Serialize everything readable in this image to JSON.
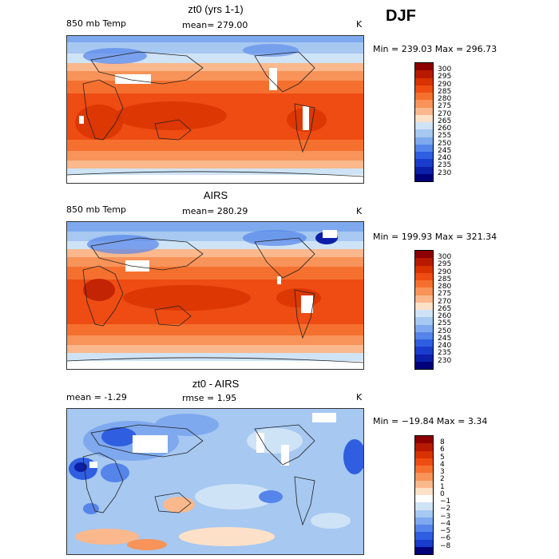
{
  "season": "DJF",
  "panels": [
    {
      "title": "zt0 (yrs 1-1)",
      "left_label": "850 mb Temp",
      "center_label": "mean= 279.00",
      "units": "K",
      "minmax": "Min = 239.03 Max = 296.73",
      "kind": "abs",
      "colorbar_labels": [
        "300",
        "295",
        "290",
        "285",
        "280",
        "275",
        "270",
        "265",
        "260",
        "255",
        "250",
        "245",
        "240",
        "235",
        "230"
      ],
      "colorbar_colors": [
        "#8c0000",
        "#b81a00",
        "#d83200",
        "#ee4c12",
        "#f5702e",
        "#f89359",
        "#fab88c",
        "#fde0c8",
        "#cfe3f6",
        "#a6c8f1",
        "#7ea9ee",
        "#5585ea",
        "#2f5fe0",
        "#1a3ccd",
        "#0c1fa8",
        "#00007a"
      ]
    },
    {
      "title": "AIRS",
      "left_label": "850 mb Temp",
      "center_label": "mean= 280.29",
      "units": "K",
      "minmax": "Min = 199.93 Max = 321.34",
      "kind": "abs",
      "colorbar_labels": [
        "300",
        "295",
        "290",
        "285",
        "280",
        "275",
        "270",
        "265",
        "260",
        "255",
        "250",
        "245",
        "240",
        "235",
        "230"
      ],
      "colorbar_colors": [
        "#8c0000",
        "#b81a00",
        "#d83200",
        "#ee4c12",
        "#f5702e",
        "#f89359",
        "#fab88c",
        "#fde0c8",
        "#cfe3f6",
        "#a6c8f1",
        "#7ea9ee",
        "#5585ea",
        "#2f5fe0",
        "#1a3ccd",
        "#0c1fa8",
        "#00007a"
      ]
    },
    {
      "title": "zt0 - AIRS",
      "left_label": "mean =   -1.29",
      "center_label": "rmse =    1.95",
      "units": "K",
      "minmax": "Min = −19.84 Max =    3.34",
      "kind": "diff",
      "colorbar_labels": [
        "8",
        "6",
        "5",
        "4",
        "3",
        "2",
        "1",
        "0",
        "−1",
        "−2",
        "−3",
        "−4",
        "−5",
        "−6",
        "−8"
      ],
      "colorbar_colors": [
        "#8c0000",
        "#b81a00",
        "#d83200",
        "#ee4c12",
        "#f5702e",
        "#f89359",
        "#fab88c",
        "#fde0c8",
        "#ffffff",
        "#cfe3f6",
        "#a6c8f1",
        "#7ea9ee",
        "#5585ea",
        "#2f5fe0",
        "#1a3ccd",
        "#00007a"
      ]
    }
  ]
}
